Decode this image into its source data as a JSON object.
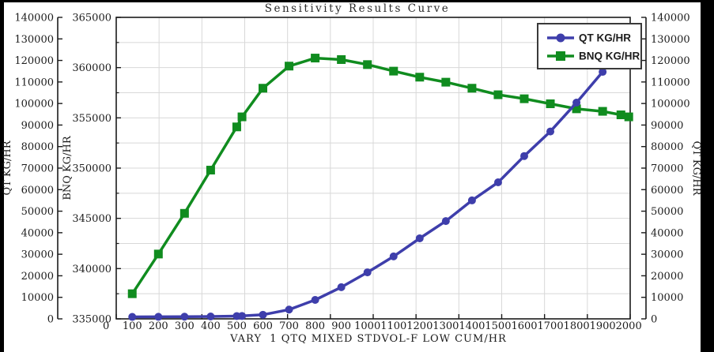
{
  "chart_data": {
    "type": "line",
    "title": "Sensitivity Results Curve",
    "x_axis": {
      "label": "VARY  1 QTQ MIXED STDVOL-F LOW CUM/HR",
      "min": 0,
      "max": 2000,
      "tick_step": 100,
      "ticks": [
        0,
        100,
        200,
        300,
        400,
        500,
        600,
        700,
        800,
        900,
        1000,
        1100,
        1200,
        1300,
        1400,
        1500,
        1600,
        1700,
        1800,
        1900,
        2000
      ]
    },
    "left_axis_qt": {
      "label": "QT KG/HR",
      "min": 0,
      "max": 140000,
      "tick_step": 10000,
      "ticks": [
        0,
        10000,
        20000,
        30000,
        40000,
        50000,
        60000,
        70000,
        80000,
        90000,
        100000,
        110000,
        120000,
        130000,
        140000
      ]
    },
    "left_axis_bnq": {
      "label": "BNQ KG/HR",
      "min": 335000,
      "max": 365000,
      "tick_step": 5000,
      "ticks": [
        335000,
        340000,
        345000,
        350000,
        355000,
        360000,
        365000
      ]
    },
    "right_axis_qt": {
      "label": "QT KG/HR",
      "min": 0,
      "max": 140000,
      "tick_step": 10000,
      "ticks": [
        0,
        10000,
        20000,
        30000,
        40000,
        50000,
        60000,
        70000,
        80000,
        90000,
        100000,
        110000,
        120000,
        130000,
        140000
      ]
    },
    "grid": {
      "divisions_x": 12,
      "divisions_y": 12,
      "color": "#d8d8d8",
      "on": true
    },
    "legend": {
      "position": "top-right",
      "entries": [
        {
          "label": "QT KG/HR",
          "color": "#3e3eab",
          "marker": "circle"
        },
        {
          "label": "BNQ KG/HR",
          "color": "#108c1f",
          "marker": "square"
        }
      ]
    },
    "series": [
      {
        "name": "QT KG/HR",
        "axis": "qt",
        "color": "#3e3eab",
        "marker": "circle",
        "x": [
          100,
          200,
          300,
          400,
          500,
          520,
          600,
          700,
          800,
          900,
          1000,
          1100,
          1200,
          1300,
          1400,
          1500,
          1600,
          1700,
          1800,
          1900,
          1970,
          2000
        ],
        "y": [
          900,
          950,
          1000,
          1100,
          1300,
          1350,
          1900,
          4300,
          8800,
          14700,
          21600,
          29000,
          37400,
          45400,
          55000,
          63400,
          75600,
          87000,
          100400,
          114700,
          127500,
          135400
        ]
      },
      {
        "name": "BNQ KG/HR",
        "axis": "bnq",
        "color": "#108c1f",
        "marker": "square",
        "x": [
          100,
          200,
          300,
          400,
          500,
          520,
          600,
          700,
          800,
          900,
          1000,
          1100,
          1200,
          1300,
          1400,
          1500,
          1600,
          1700,
          1800,
          1900,
          1970,
          2000
        ],
        "y": [
          337500,
          341450,
          345500,
          349800,
          354100,
          355100,
          357950,
          360150,
          360950,
          360800,
          360300,
          359650,
          359050,
          358550,
          357950,
          357300,
          356900,
          356400,
          355900,
          355650,
          355300,
          355100
        ]
      }
    ],
    "colors": {
      "frame": "#1b1b1b",
      "grid": "#d8d8d8",
      "background": "#ffffff",
      "border": "#000000"
    }
  }
}
